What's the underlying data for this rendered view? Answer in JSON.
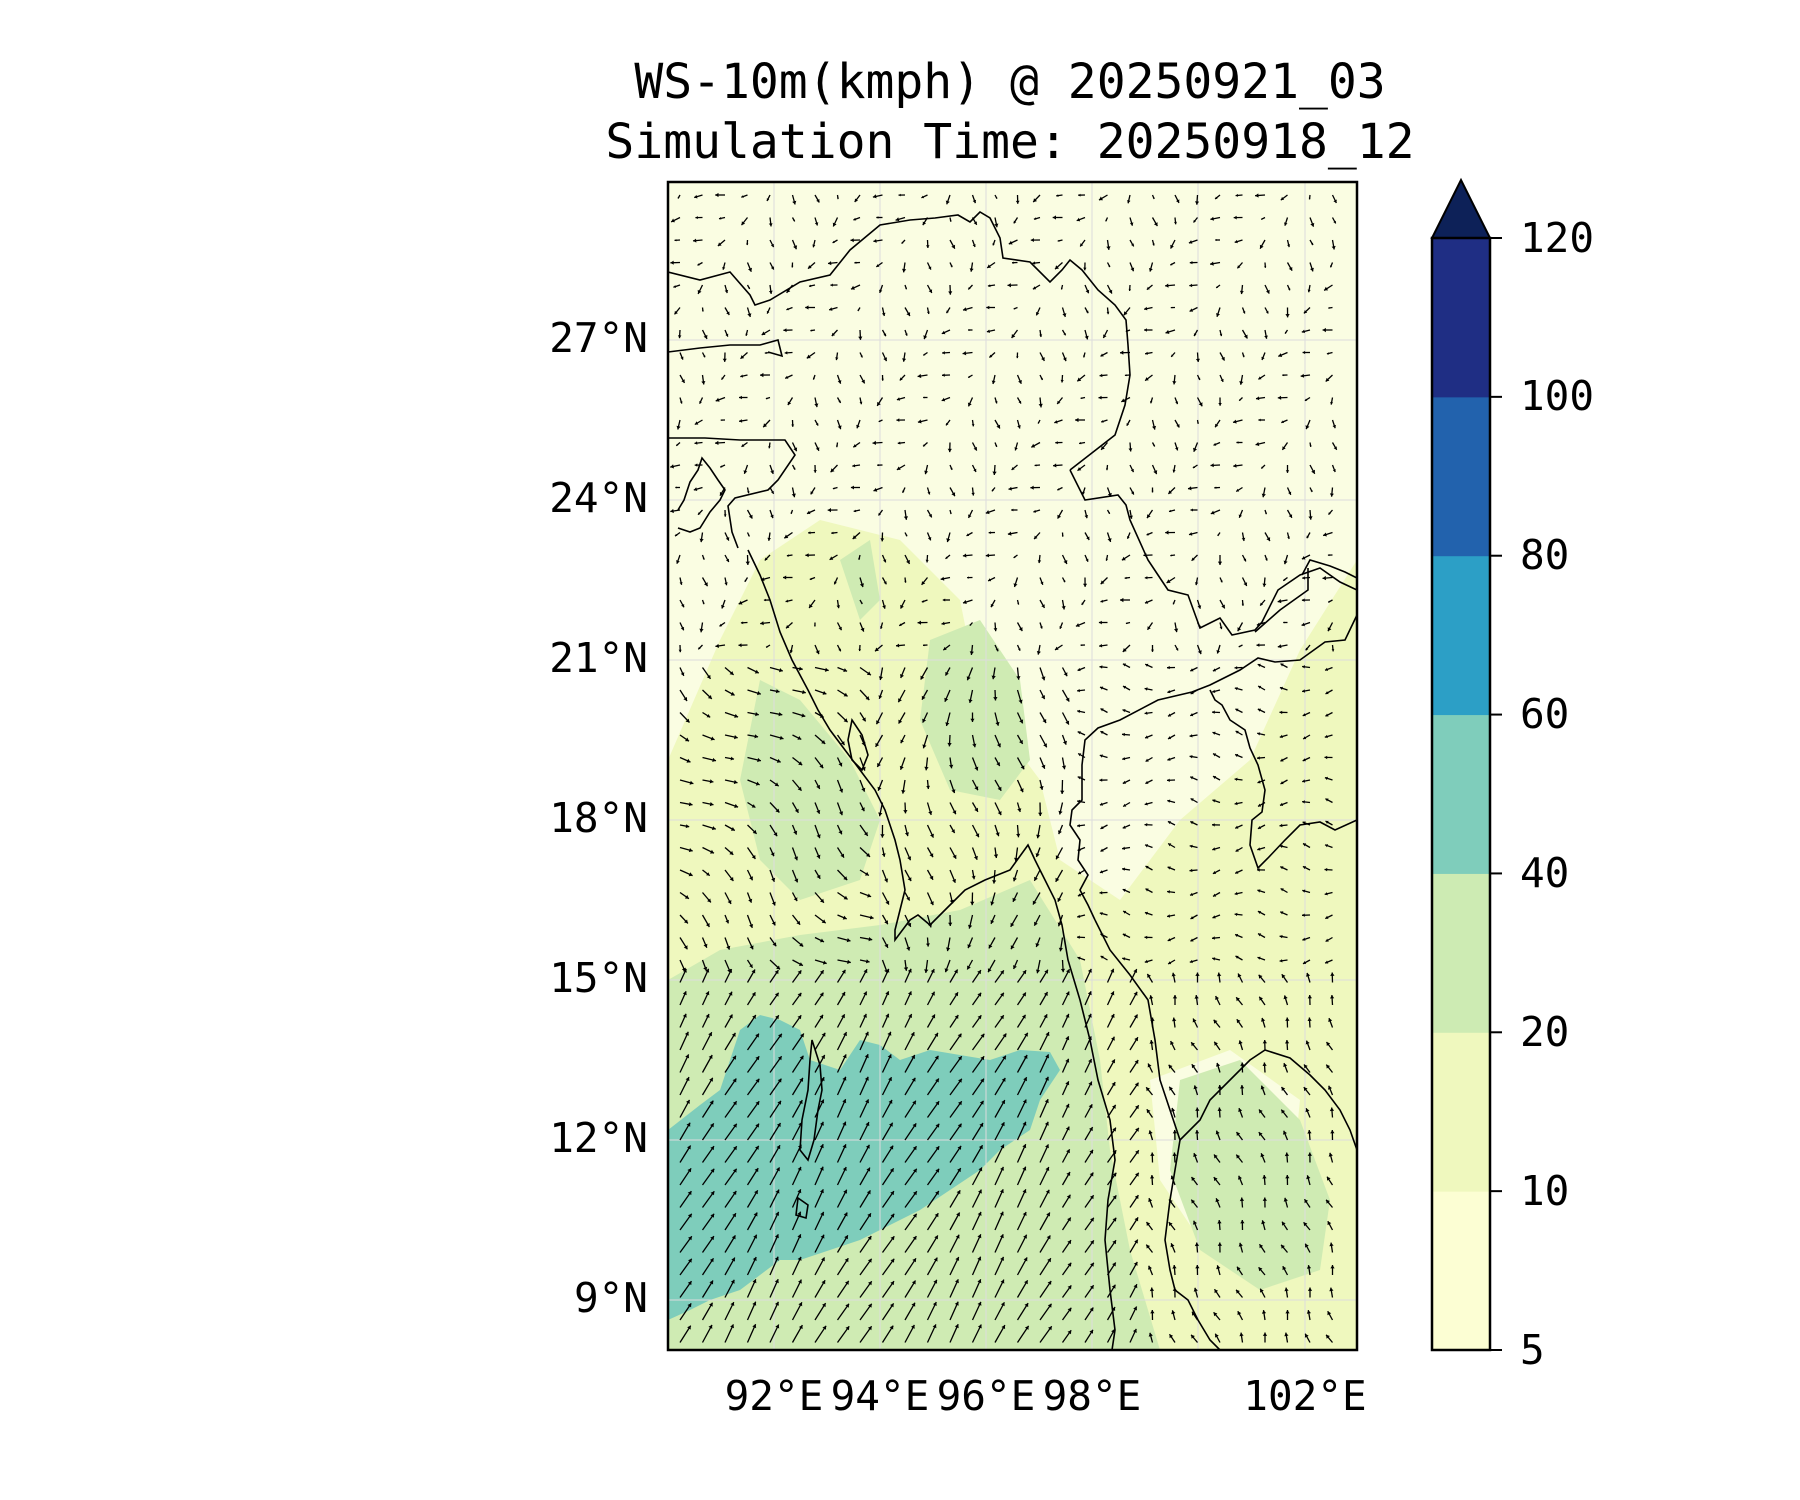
{
  "title": "WS-10m(kmph) @ 20250921_03",
  "subtitle": "Simulation Time: 20250918_12",
  "map": {
    "lon_ticks": [
      "92°E",
      "94°E",
      "96°E",
      "98°E",
      "102°E"
    ],
    "lat_ticks": [
      "27°N",
      "24°N",
      "21°N",
      "18°N",
      "15°N",
      "12°N",
      "9°N"
    ],
    "lon_range": [
      90.2,
      103.2
    ],
    "lat_range": [
      8,
      30
    ]
  },
  "colorbar": {
    "levels": [
      "5",
      "10",
      "20",
      "40",
      "60",
      "80",
      "100",
      "120"
    ],
    "colors": [
      "#fcfed3",
      "#eff8be",
      "#cdebb3",
      "#7fcdbb",
      "#2c9fc6",
      "#2262ad",
      "#1f2e84"
    ],
    "extend_color": "#0d2158",
    "extend": "max"
  },
  "field_colors": {
    "sea_background": "#eff8be",
    "land_light": "#fafde2",
    "moderate": "#cfebb3",
    "strong": "#7ecdbb"
  }
}
